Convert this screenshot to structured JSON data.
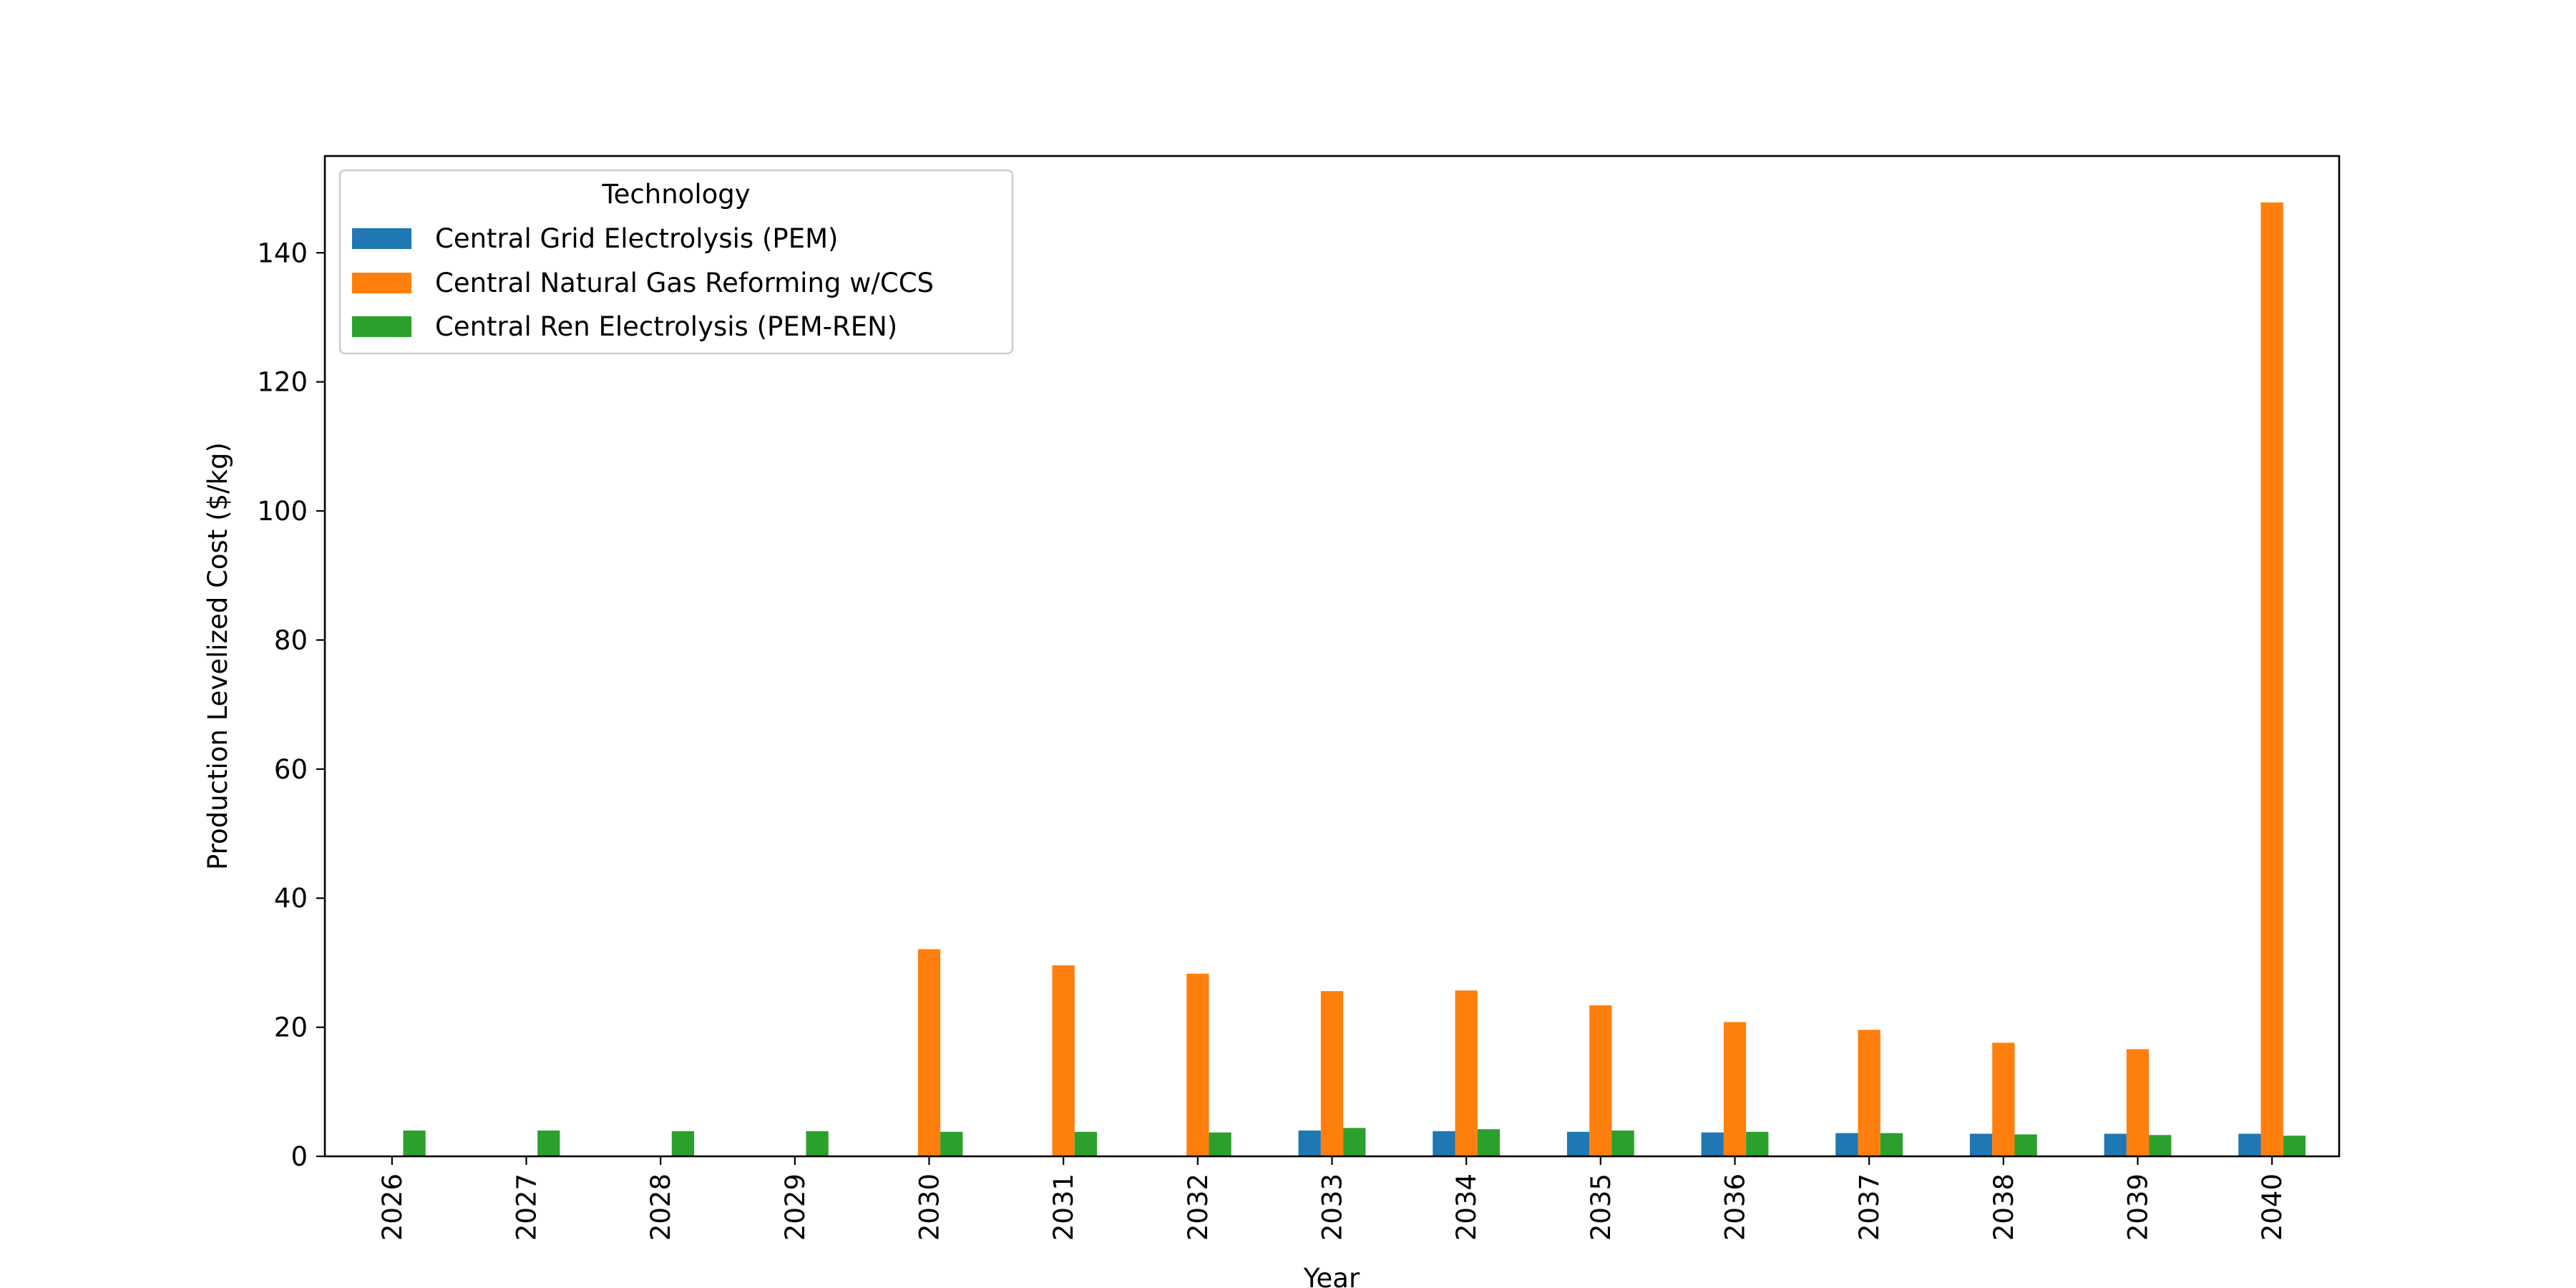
{
  "chart_data": {
    "type": "bar",
    "title": "",
    "xlabel": "Year",
    "ylabel": "Production Levelized Cost ($/kg)",
    "categories": [
      "2026",
      "2027",
      "2028",
      "2029",
      "2030",
      "2031",
      "2032",
      "2033",
      "2034",
      "2035",
      "2036",
      "2037",
      "2038",
      "2039",
      "2040"
    ],
    "ylim": [
      0,
      155
    ],
    "yticks": [
      0,
      20,
      40,
      60,
      80,
      100,
      120,
      140
    ],
    "grid": false,
    "legend": {
      "title": "Technology",
      "position": "top-left"
    },
    "series": [
      {
        "name": "Central Grid Electrolysis (PEM)",
        "color": "#1f77b4",
        "values": [
          null,
          null,
          null,
          null,
          null,
          null,
          null,
          4.0,
          3.9,
          3.8,
          3.7,
          3.6,
          3.5,
          3.5,
          3.5
        ]
      },
      {
        "name": "Central Natural Gas Reforming w/CCS",
        "color": "#ff7f0e",
        "values": [
          null,
          null,
          null,
          null,
          32.1,
          29.6,
          28.3,
          25.6,
          25.7,
          23.4,
          20.8,
          19.6,
          17.6,
          16.6,
          147.8
        ]
      },
      {
        "name": "Central Ren Electrolysis (PEM-REN)",
        "color": "#2ca02c",
        "values": [
          4.0,
          4.0,
          3.9,
          3.9,
          3.8,
          3.8,
          3.7,
          4.4,
          4.2,
          4.0,
          3.8,
          3.6,
          3.4,
          3.3,
          3.2
        ]
      }
    ]
  }
}
